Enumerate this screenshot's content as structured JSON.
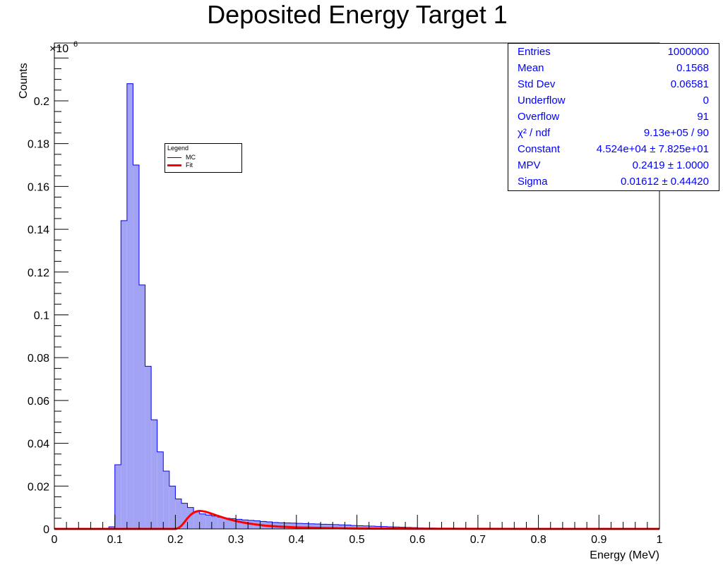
{
  "chart_data": {
    "type": "bar",
    "title": "Deposited Energy Target 1",
    "xlabel": "Energy (MeV)",
    "ylabel": "Counts",
    "y_exponent_label": "×10",
    "y_exponent_power": "6",
    "xlim": [
      0,
      1
    ],
    "ylim": [
      0,
      0.227
    ],
    "bin_width": 0.01,
    "x_ticks": [
      0,
      0.1,
      0.2,
      0.3,
      0.4,
      0.5,
      0.6,
      0.7,
      0.8,
      0.9,
      1
    ],
    "x_tick_labels": [
      "0",
      "0.1",
      "0.2",
      "0.3",
      "0.4",
      "0.5",
      "0.6",
      "0.7",
      "0.8",
      "0.9",
      "1"
    ],
    "y_ticks": [
      0,
      0.02,
      0.04,
      0.06,
      0.08,
      0.1,
      0.12,
      0.14,
      0.16,
      0.18,
      0.2
    ],
    "y_tick_labels": [
      "0",
      "0.02",
      "0.04",
      "0.06",
      "0.08",
      "0.1",
      "0.12",
      "0.14",
      "0.16",
      "0.18",
      "0.2"
    ],
    "series": [
      {
        "name": "MC",
        "color": "#0000ff",
        "fill": "#a3a3f5",
        "bin_edges_start": 0,
        "values": [
          0,
          0,
          0,
          0,
          0,
          0,
          0,
          0,
          0,
          0.001,
          0.03,
          0.144,
          0.208,
          0.17,
          0.114,
          0.076,
          0.051,
          0.036,
          0.027,
          0.02,
          0.014,
          0.012,
          0.01,
          0.008,
          0.007,
          0.0065,
          0.006,
          0.0055,
          0.005,
          0.0048,
          0.0045,
          0.0042,
          0.004,
          0.0038,
          0.0035,
          0.0033,
          0.003,
          0.0029,
          0.0028,
          0.0027,
          0.0026,
          0.0025,
          0.0024,
          0.0023,
          0.0022,
          0.0021,
          0.002,
          0.0019,
          0.0018,
          0.0016,
          0.0015,
          0.0014,
          0.0013,
          0.0012,
          0.0011,
          0.001,
          0.0009,
          0.0008,
          0.0007,
          0.0006,
          0.0005,
          0.0004,
          0.0004,
          0.0003,
          0.0003,
          0.0002,
          0.0002,
          0.0002,
          0.0001,
          0.0001,
          0.0001,
          0.0001,
          0,
          0,
          0,
          0,
          0,
          0,
          0,
          0,
          0,
          0,
          0,
          0,
          0,
          0,
          0,
          0,
          0,
          0,
          0,
          0,
          0,
          0,
          0,
          0,
          0,
          0,
          0,
          0
        ]
      },
      {
        "name": "Fit",
        "color": "#ff0000",
        "type": "line",
        "x": [
          0,
          0.2,
          0.205,
          0.21,
          0.215,
          0.22,
          0.225,
          0.23,
          0.235,
          0.24,
          0.245,
          0.25,
          0.255,
          0.26,
          0.265,
          0.27,
          0.28,
          0.29,
          0.3,
          0.31,
          0.32,
          0.33,
          0.34,
          0.35,
          0.37,
          0.4,
          0.45,
          0.5,
          0.6,
          0.7,
          0.8,
          1.0
        ],
        "y": [
          0,
          0,
          0.0004,
          0.0015,
          0.0032,
          0.005,
          0.0065,
          0.0076,
          0.0082,
          0.0084,
          0.0083,
          0.008,
          0.0076,
          0.0071,
          0.0066,
          0.0061,
          0.0052,
          0.0044,
          0.0037,
          0.0031,
          0.0026,
          0.0022,
          0.0018,
          0.0015,
          0.0011,
          0.0007,
          0.0004,
          0.0002,
          0.0001,
          5e-05,
          2e-05,
          0
        ]
      }
    ],
    "legend": {
      "title": "Legend",
      "placement": "upper-left",
      "entries": [
        {
          "label": "MC",
          "color": "#0000ff"
        },
        {
          "label": "Fit",
          "color": "#ff0000"
        }
      ]
    },
    "stats_box": {
      "placement": "top-right",
      "rows": [
        {
          "label": "Entries",
          "value": "1000000"
        },
        {
          "label": "Mean",
          "value": "0.1568"
        },
        {
          "label": "Std Dev",
          "value": "0.06581"
        },
        {
          "label": "Underflow",
          "value": "0"
        },
        {
          "label": "Overflow",
          "value": "91"
        },
        {
          "label": "χ² / ndf",
          "value": "9.13e+05 / 90"
        },
        {
          "label": "Constant",
          "value": "4.524e+04 ± 7.825e+01"
        },
        {
          "label": "MPV",
          "value": "0.2419 ± 1.0000"
        },
        {
          "label": "Sigma",
          "value": "0.01612 ± 0.44420"
        }
      ]
    }
  }
}
